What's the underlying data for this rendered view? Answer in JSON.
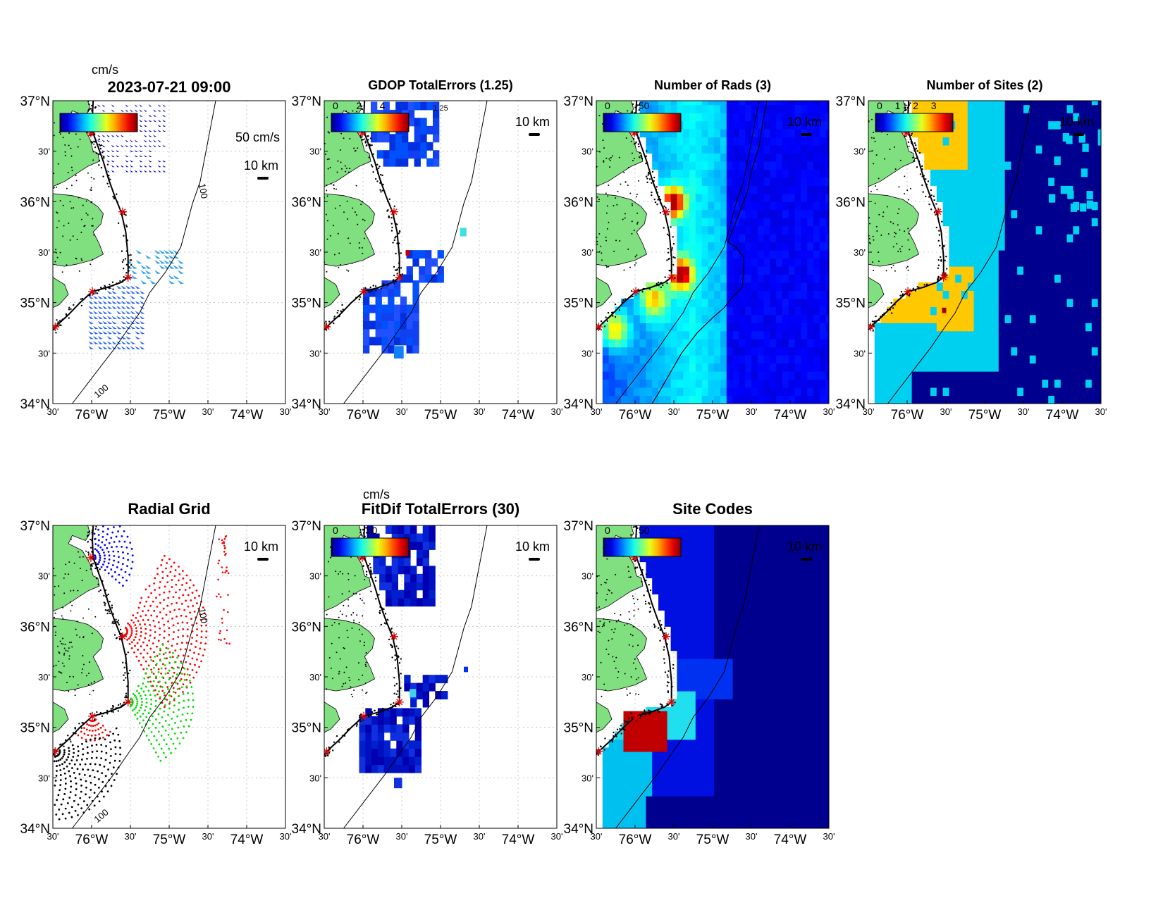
{
  "figure": {
    "panels": [
      {
        "id": "currents",
        "title": "2023-07-21 09:00",
        "kind": "vectors",
        "colorbar": {
          "unit": "cm/s",
          "ticks": []
        },
        "scale": {
          "arrow": "50 cm/s",
          "bar": "10 km"
        }
      },
      {
        "id": "gdop",
        "title": "GDOP TotalErrors (1.25)",
        "kind": "raster",
        "colorbar": {
          "unit": "",
          "ticks": [
            "0",
            "2",
            "4"
          ]
        },
        "contour_label": "1.25",
        "scale": {
          "bar": "10 km"
        }
      },
      {
        "id": "rads",
        "title": "Number of Rads (3)",
        "kind": "raster",
        "colorbar": {
          "unit": "",
          "ticks": [
            "0",
            "50"
          ]
        },
        "scale": {
          "bar": "10 km"
        }
      },
      {
        "id": "sites",
        "title": "Number of Sites (2)",
        "kind": "categorical",
        "colorbar": {
          "unit": "",
          "ticks": [
            "0",
            "1",
            "2",
            "3"
          ]
        },
        "contour_label": "2",
        "scale": {
          "bar": "10 km"
        }
      },
      {
        "id": "radgrid",
        "title": "Radial Grid",
        "kind": "dots",
        "colorbar": null,
        "scale": {
          "bar": "10 km"
        }
      },
      {
        "id": "fitdif",
        "title": "FitDif TotalErrors (30)",
        "kind": "raster",
        "colorbar": {
          "unit": "cm/s",
          "ticks": [
            "0",
            "50"
          ]
        },
        "scale": {
          "bar": "10 km"
        }
      },
      {
        "id": "sitecodes",
        "title": "Site Codes",
        "kind": "categorical",
        "colorbar": {
          "unit": "",
          "ticks": [
            "0",
            "50"
          ]
        },
        "scale": {
          "bar": "10 km"
        }
      }
    ],
    "lat_ticks": [
      "34°N",
      "30'",
      "35°N",
      "30'",
      "36°N",
      "30'",
      "37°N"
    ],
    "lon_ticks": [
      "30'",
      "76°W",
      "30'",
      "75°W",
      "30'",
      "74°W",
      "30'"
    ],
    "isobath_label": "100",
    "extent": {
      "lat": [
        34,
        37
      ],
      "lon": [
        -76.5,
        -73.5
      ]
    },
    "sites": [
      {
        "lon": -76.01,
        "lat": 36.68
      },
      {
        "lon": -75.6,
        "lat": 35.9
      },
      {
        "lon": -75.53,
        "lat": 35.25
      },
      {
        "lon": -75.99,
        "lat": 35.11
      },
      {
        "lon": -76.47,
        "lat": 34.76
      }
    ],
    "colors": {
      "land": "#80E080",
      "dark_blue": "#00008F",
      "mid_blue": "#0000E0",
      "cyan": "#00D0F0",
      "orange": "#FFC800",
      "darkred": "#A00000",
      "red_site": "#E00000",
      "grid_red": "#FF0000",
      "grid_blue": "#0000FF",
      "grid_green": "#00E000",
      "grid_black": "#000000"
    }
  }
}
